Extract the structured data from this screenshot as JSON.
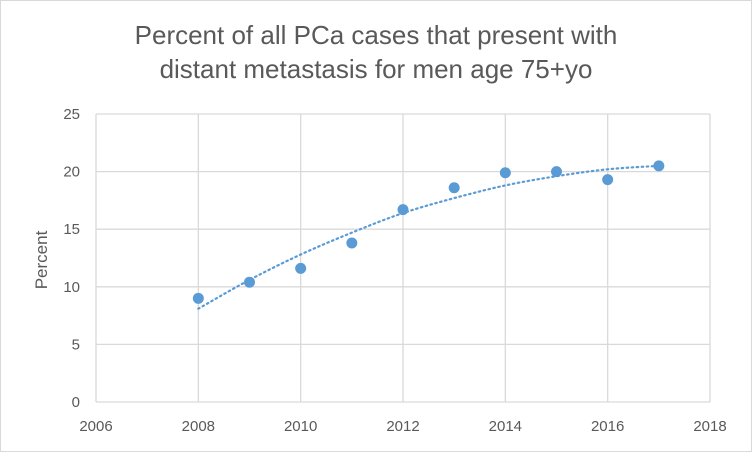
{
  "chart_data": {
    "type": "scatter",
    "title_lines": [
      "Percent of all PCa cases that present with",
      "distant metastasis for men age 75+yo"
    ],
    "xlabel": "",
    "ylabel": "Percent",
    "xlim": [
      2006,
      2018
    ],
    "ylim": [
      0,
      25
    ],
    "x_ticks": [
      2006,
      2008,
      2010,
      2012,
      2014,
      2016,
      2018
    ],
    "y_ticks": [
      0,
      5,
      10,
      15,
      20,
      25
    ],
    "grid": true,
    "legend": "none",
    "colors": {
      "marker": "#5b9bd5",
      "trendline": "#5b9bd5",
      "grid": "#d9d9d9",
      "text": "#595959"
    },
    "series": [
      {
        "x": [
          2008,
          2009,
          2010,
          2011,
          2012,
          2013,
          2014,
          2015,
          2016,
          2017
        ],
        "y": [
          9.0,
          10.4,
          11.6,
          13.8,
          16.7,
          18.6,
          19.9,
          20.0,
          19.3,
          20.5
        ]
      }
    ],
    "trendline": {
      "style": "dotted",
      "kind": "polynomial",
      "x": [
        2008,
        2009,
        2010,
        2011,
        2012,
        2013,
        2014,
        2015,
        2016,
        2017
      ],
      "y": [
        8.1,
        10.6,
        12.8,
        14.7,
        16.4,
        17.7,
        18.8,
        19.6,
        20.2,
        20.5
      ]
    }
  }
}
